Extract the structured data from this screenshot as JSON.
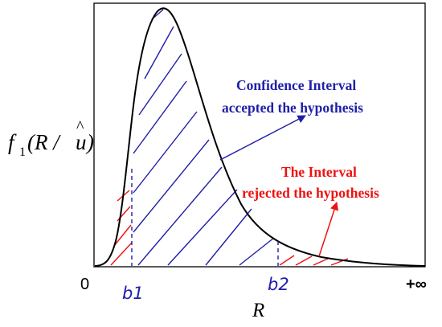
{
  "diagram": {
    "y_axis_label": {
      "prefix": "f",
      "subscript": "1",
      "open": "(R / ",
      "u": "u",
      "hat": "^",
      "close": ")"
    },
    "x_axis_label": "R",
    "tick_zero": "0",
    "tick_b1": "b1",
    "tick_b2": "b2",
    "tick_infinity": "+∞",
    "accept_annotation": {
      "line1": "Confidence Interval",
      "line2": "accepted the hypothesis"
    },
    "reject_annotation": {
      "line1": "The Interval",
      "line2": "rejected the hypothesis"
    }
  },
  "colors": {
    "accept": "#1f1fa8",
    "reject": "#ee1111",
    "curve": "#000000",
    "frame": "#000000"
  }
}
